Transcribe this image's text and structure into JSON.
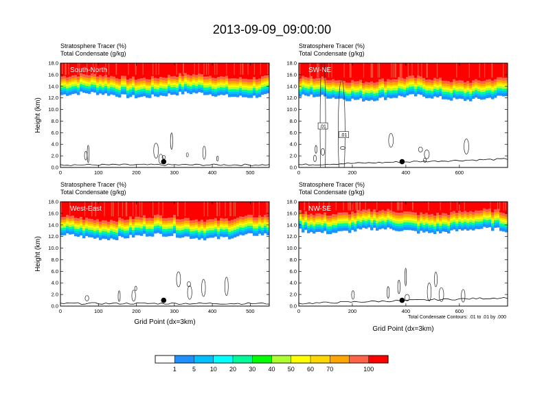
{
  "title": "2013-09-09_09:00:00",
  "colors": {
    "levels": [
      "#ffffff",
      "#1e90ff",
      "#00bfff",
      "#00ffff",
      "#00fa9a",
      "#00ff00",
      "#adff2f",
      "#ffff00",
      "#ffd700",
      "#ffa500",
      "#ff6347",
      "#ff0000"
    ]
  },
  "colorbar": {
    "labels": [
      "1",
      "5",
      "10",
      "20",
      "30",
      "40",
      "50",
      "60",
      "70",
      "100"
    ]
  },
  "chart_data": [
    {
      "type": "heatmap",
      "name": "South-North",
      "subtitle_lines": [
        "Stratosphere Tracer   (%)",
        "Total Condensate   (g/kg)"
      ],
      "ylabel": "Height (km)",
      "xlabel": "",
      "ylim": [
        0,
        18
      ],
      "yticks": [
        "0.0",
        "2.0",
        "4.0",
        "6.0",
        "8.0",
        "10.0",
        "12.0",
        "14.0",
        "16.0",
        "18.0"
      ],
      "xlim": [
        0,
        550
      ],
      "xticks": [
        0,
        100,
        200,
        300,
        400,
        500
      ],
      "tracer_base_km": 12.5,
      "marker_x": 272,
      "marker_km": 1.0
    },
    {
      "type": "heatmap",
      "name": "SW-NE",
      "subtitle_lines": [
        "Stratosphere Tracer   (%)",
        "Total Condensate   (g/kg)"
      ],
      "ylabel": "",
      "xlabel": "",
      "ylim": [
        0,
        18
      ],
      "yticks": [
        "0.0",
        "2.0",
        "4.0",
        "6.0",
        "8.0",
        "10.0",
        "12.0",
        "14.0",
        "16.0",
        "18.0"
      ],
      "xlim": [
        0,
        780
      ],
      "xticks": [
        0,
        200,
        400,
        600
      ],
      "tracer_base_km": 12.0,
      "marker_x": 386,
      "marker_km": 1.0,
      "contour_labels": [
        ".01",
        ".01"
      ]
    },
    {
      "type": "heatmap",
      "name": "West-East",
      "subtitle_lines": [
        "Stratosphere Tracer   (%)",
        "Total Condensate   (g/kg)"
      ],
      "ylabel": "Height (km)",
      "xlabel": "Grid Point (dx=3km)",
      "ylim": [
        0,
        18
      ],
      "yticks": [
        "0.0",
        "2.0",
        "4.0",
        "6.0",
        "8.0",
        "10.0",
        "12.0",
        "14.0",
        "16.0",
        "18.0"
      ],
      "xlim": [
        0,
        550
      ],
      "xticks": [
        0,
        100,
        200,
        300,
        400,
        500
      ],
      "tracer_base_km": 12.0,
      "marker_x": 272,
      "marker_km": 1.0
    },
    {
      "type": "heatmap",
      "name": "NW-SE",
      "subtitle_lines": [
        "Stratosphere Tracer   (%)",
        "Total Condensate   (g/kg)"
      ],
      "ylabel": "",
      "xlabel": "Grid Point (dx=3km)",
      "ylim": [
        0,
        18
      ],
      "yticks": [
        "0.0",
        "2.0",
        "4.0",
        "6.0",
        "8.0",
        "10.0",
        "12.0",
        "14.0",
        "16.0",
        "18.0"
      ],
      "xlim": [
        0,
        780
      ],
      "xticks": [
        0,
        200,
        400,
        600
      ],
      "tracer_base_km": 13.0,
      "marker_x": 386,
      "marker_km": 1.0
    }
  ],
  "contour_note": "Total Condensate Contours: .01 to .01 by .000"
}
